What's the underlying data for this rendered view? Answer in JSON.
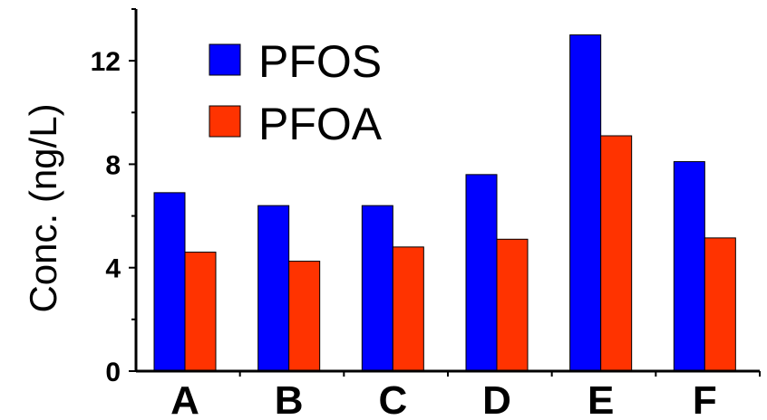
{
  "chart_data": {
    "type": "bar",
    "categories": [
      "A",
      "B",
      "C",
      "D",
      "E",
      "F"
    ],
    "series": [
      {
        "name": "PFOS",
        "color": "#0000ff",
        "values": [
          6.9,
          6.4,
          6.4,
          7.6,
          13.0,
          8.1
        ]
      },
      {
        "name": "PFOA",
        "color": "#ff3300",
        "values": [
          4.6,
          4.25,
          4.8,
          5.1,
          9.1,
          5.15
        ]
      }
    ],
    "ylabel": "Conc. (ng/L)",
    "xlabel": "",
    "ylim": [
      0,
      14
    ],
    "yticks": [
      "0",
      "4",
      "8",
      "12"
    ],
    "ytick_values": [
      0,
      4,
      8,
      12
    ],
    "grid": false,
    "legend_position": "top-left"
  }
}
